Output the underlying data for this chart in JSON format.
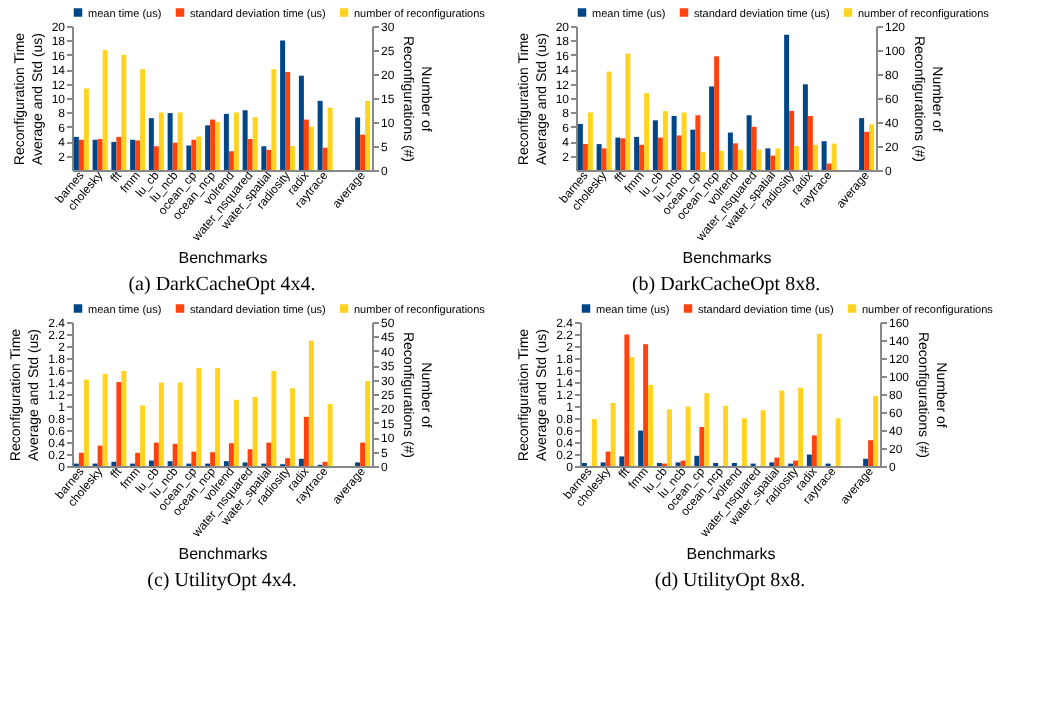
{
  "chart_data": [
    {
      "type": "bar",
      "title": "(a) DarkCacheOpt 4x4.",
      "xlabel": "Benchmarks",
      "ylabel": "Reconfiguration Time\nAverage and Std (us)",
      "y2label": "Number of\nReconfigurations (#)",
      "legend": "top",
      "categories": [
        "barnes",
        "cholesky",
        "fft",
        "fmm",
        "lu_cb",
        "lu_ncb",
        "ocean_cp",
        "ocean_ncp",
        "volrend",
        "water_nsquared",
        "water_spatial",
        "radiosity",
        "radix",
        "raytrace",
        null,
        "average"
      ],
      "ylim": [
        0,
        20
      ],
      "yticks": [
        2,
        4,
        6,
        8,
        10,
        12,
        14,
        16,
        18,
        20
      ],
      "y2lim": [
        0,
        30
      ],
      "y2ticks": [
        0,
        5,
        10,
        15,
        20,
        25,
        30
      ],
      "series": [
        {
          "name": "mean time (us)",
          "color": "#004586",
          "values": [
            4.6,
            4.2,
            3.9,
            4.2,
            7.2,
            7.9,
            3.4,
            6.2,
            7.8,
            8.3,
            3.3,
            18.0,
            13.1,
            9.6,
            null,
            7.3
          ]
        },
        {
          "name": "standard deviation time (us)",
          "color": "#ff420e",
          "values": [
            4.2,
            4.3,
            4.6,
            4.1,
            3.3,
            3.8,
            4.2,
            7.0,
            2.6,
            4.3,
            2.8,
            13.6,
            7.0,
            3.1,
            null,
            4.9
          ]
        },
        {
          "name": "number of reconfigurations",
          "color": "#ffd320",
          "axis": "y2",
          "values": [
            17,
            25,
            24,
            21,
            12,
            12,
            7,
            10,
            12,
            11,
            21,
            5,
            9,
            13,
            null,
            14.4
          ]
        }
      ]
    },
    {
      "type": "bar",
      "title": "(b) DarkCacheOpt 8x8.",
      "xlabel": "Benchmarks",
      "ylabel": "Reconfiguration Time\nAverage and Std (us)",
      "y2label": "Number of\nReconfigurations (#)",
      "legend": "top",
      "categories": [
        "barnes",
        "cholesky",
        "fft",
        "fmm",
        "lu_cb",
        "lu_ncb",
        "ocean_cp",
        "ocean_ncp",
        "volrend",
        "water_nsquared",
        "water_spatial",
        "radiosity",
        "radix",
        "raytrace",
        null,
        "average"
      ],
      "ylim": [
        0,
        20
      ],
      "yticks": [
        2,
        4,
        6,
        8,
        10,
        12,
        14,
        16,
        18,
        20
      ],
      "y2lim": [
        0,
        120
      ],
      "y2ticks": [
        0,
        20,
        40,
        60,
        80,
        100,
        120
      ],
      "series": [
        {
          "name": "mean time (us)",
          "color": "#004586",
          "values": [
            6.4,
            3.6,
            4.5,
            4.6,
            6.9,
            7.5,
            5.6,
            11.6,
            5.2,
            7.6,
            3.0,
            18.8,
            11.9,
            4.0,
            null,
            7.2
          ]
        },
        {
          "name": "standard deviation time (us)",
          "color": "#ff420e",
          "values": [
            3.6,
            3.0,
            4.4,
            3.5,
            4.5,
            4.8,
            7.6,
            15.8,
            3.7,
            6.0,
            2.0,
            8.2,
            7.5,
            0.9,
            null,
            5.3
          ]
        },
        {
          "name": "number of reconfigurations",
          "color": "#ffd320",
          "axis": "y2",
          "values": [
            48,
            82,
            97,
            64,
            49,
            48,
            15,
            16,
            17,
            17,
            18,
            20,
            21,
            22,
            null,
            38
          ]
        }
      ]
    },
    {
      "type": "bar",
      "title": "(c) UtilityOpt 4x4.",
      "xlabel": "Benchmarks",
      "ylabel": "Reconfiguration Time\nAverage and Std (us)",
      "y2label": "Number of\nReconfigurations (#)",
      "legend": "top",
      "categories": [
        "barnes",
        "cholesky",
        "fft",
        "fmm",
        "lu_cb",
        "lu_ncb",
        "ocean_cp",
        "ocean_ncp",
        "volrend",
        "water_nsquared",
        "water_spatial",
        "radiosity",
        "radix",
        "raytrace",
        null,
        "average"
      ],
      "ylim": [
        0,
        2.4
      ],
      "yticks": [
        0,
        0.2,
        0.4,
        0.6,
        0.8,
        1,
        1.2,
        1.4,
        1.6,
        1.8,
        2,
        2.2,
        2.4
      ],
      "y2lim": [
        0,
        50
      ],
      "y2ticks": [
        0,
        5,
        10,
        15,
        20,
        25,
        30,
        35,
        40,
        45,
        50
      ],
      "series": [
        {
          "name": "mean time (us)",
          "color": "#004586",
          "values": [
            0.04,
            0.04,
            0.07,
            0.04,
            0.09,
            0.08,
            0.04,
            0.04,
            0.08,
            0.06,
            0.04,
            0.03,
            0.12,
            0.02,
            null,
            0.06
          ]
        },
        {
          "name": "standard deviation time (us)",
          "color": "#ff420e",
          "values": [
            0.22,
            0.34,
            1.4,
            0.22,
            0.39,
            0.37,
            0.24,
            0.23,
            0.38,
            0.28,
            0.39,
            0.13,
            0.82,
            0.07,
            null,
            0.39
          ]
        },
        {
          "name": "number of reconfigurations",
          "color": "#ffd320",
          "axis": "y2",
          "values": [
            30,
            32,
            33,
            21,
            29,
            29,
            34,
            34,
            23,
            24,
            33,
            27,
            43.5,
            21.5,
            null,
            29.5
          ]
        }
      ]
    },
    {
      "type": "bar",
      "title": "(d) UtilityOpt 8x8.",
      "xlabel": "Benchmarks",
      "ylabel": "Reconfiguration Time\nAverage and Std (us)",
      "y2label": "Number of\nReconfigurations (#)",
      "legend": "top",
      "categories": [
        "barnes",
        "cholesky",
        "fft",
        "fmm",
        "lu_cb",
        "lu_ncb",
        "ocean_cp",
        "ocean_ncp",
        "volrend",
        "water_nsquared",
        "water_spatial",
        "radiosity",
        "radix",
        "raytrace",
        null,
        "average"
      ],
      "ylim": [
        0,
        2.4
      ],
      "yticks": [
        0,
        0.2,
        0.4,
        0.6,
        0.8,
        1,
        1.2,
        1.4,
        1.6,
        1.8,
        2,
        2.2,
        2.4
      ],
      "y2lim": [
        0,
        160
      ],
      "y2ticks": [
        0,
        20,
        40,
        60,
        80,
        100,
        120,
        140,
        160
      ],
      "series": [
        {
          "name": "mean time (us)",
          "color": "#004586",
          "values": [
            0.05,
            0.06,
            0.16,
            0.59,
            0.05,
            0.06,
            0.17,
            0.05,
            0.05,
            0.04,
            0.06,
            0.04,
            0.19,
            0.04,
            null,
            0.12
          ]
        },
        {
          "name": "standard deviation time (us)",
          "color": "#ff420e",
          "values": [
            null,
            0.24,
            2.19,
            2.03,
            0.04,
            0.09,
            0.65,
            null,
            null,
            null,
            0.14,
            0.09,
            0.51,
            null,
            null,
            0.43
          ]
        },
        {
          "name": "number of reconfigurations",
          "color": "#ffd320",
          "axis": "y2",
          "values": [
            52,
            70,
            121,
            90,
            63,
            66,
            81,
            67,
            53,
            62,
            84,
            87,
            147,
            53,
            null,
            78
          ]
        }
      ]
    }
  ]
}
